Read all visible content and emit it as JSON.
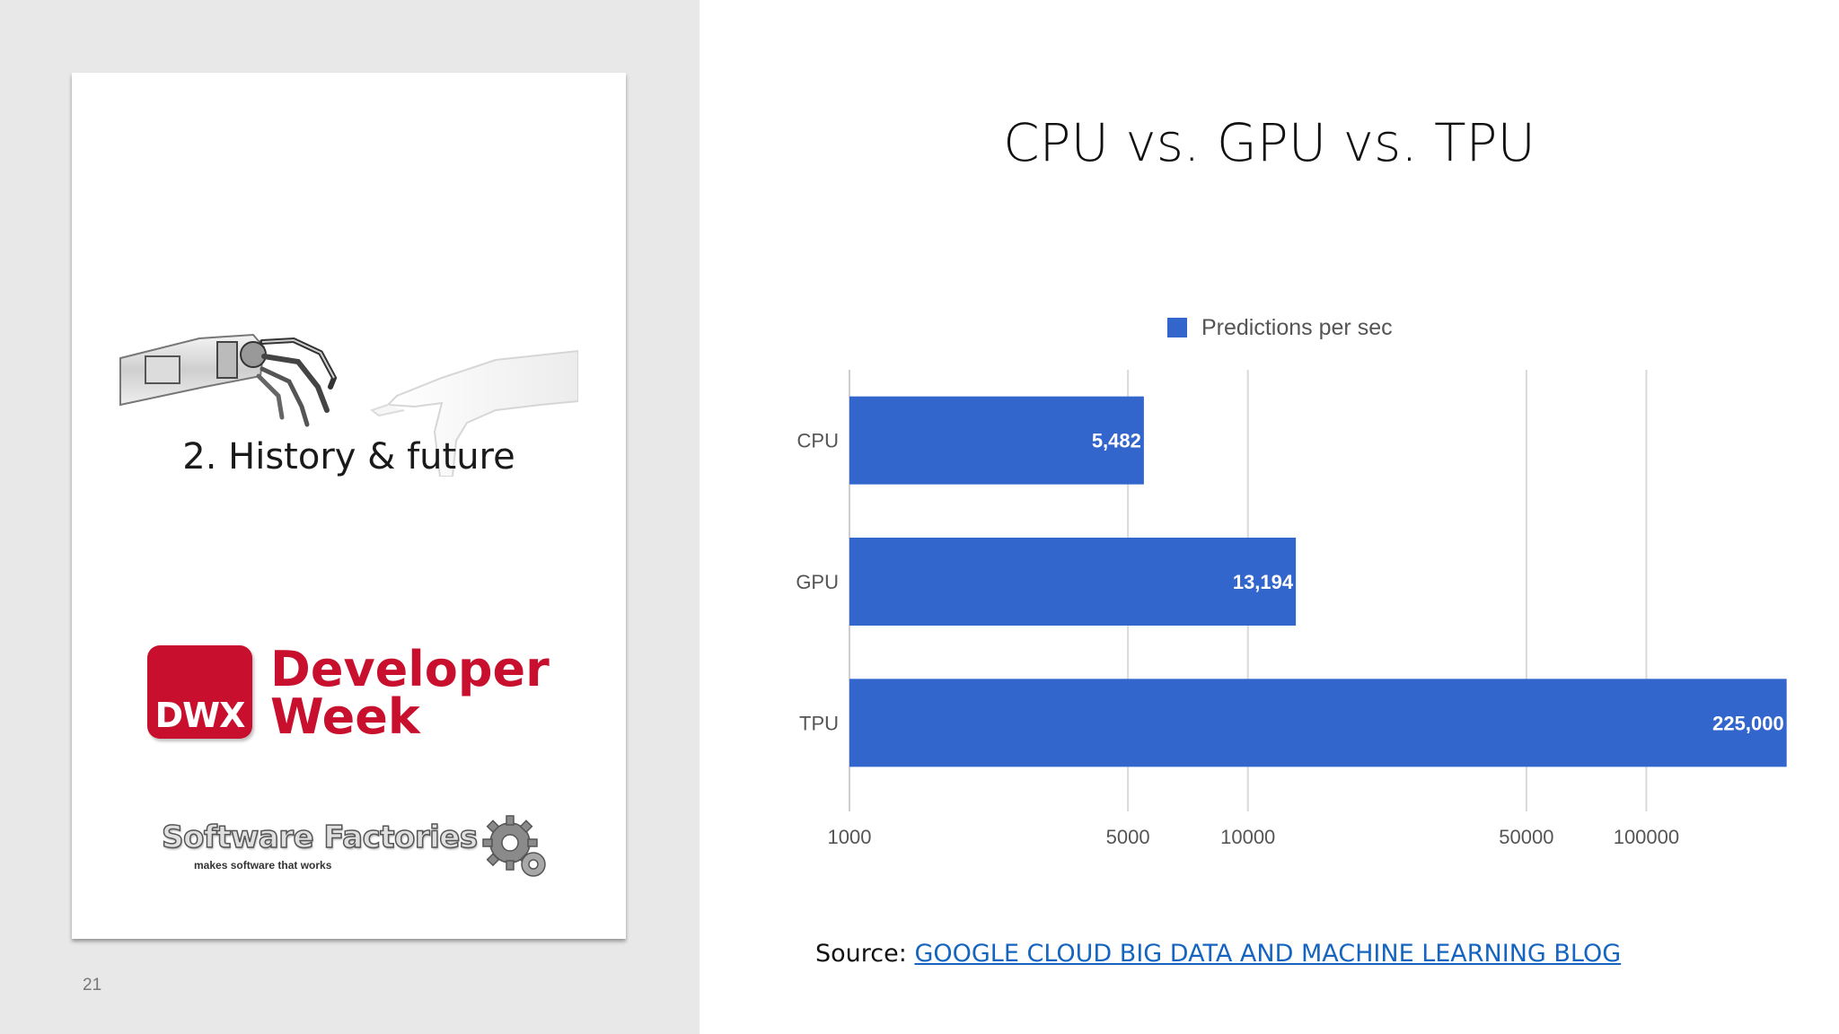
{
  "slide": {
    "title": "CPU vs. GPU vs. TPU",
    "page_number": "21",
    "source_label": "Source:",
    "source_link_text": "GOOGLE CLOUD BIG DATA AND MACHINE LEARNING BLOG"
  },
  "card": {
    "section_title": "2. History & future",
    "dwx_badge": "DWX",
    "dwx_line1": "Developer",
    "dwx_line2": "Week",
    "sf_name": "Software Factories",
    "sf_tagline": "makes software that works"
  },
  "colors": {
    "bar": "#3366cc",
    "brand_red": "#c8102e",
    "link": "#1565c0"
  },
  "chart_data": {
    "type": "bar",
    "orientation": "horizontal",
    "scale": "log",
    "categories": [
      "CPU",
      "GPU",
      "TPU"
    ],
    "series": [
      {
        "name": "Predictions per sec",
        "values": [
          5482,
          13194,
          225000
        ]
      }
    ],
    "value_labels": [
      "5,482",
      "13,194",
      "225,000"
    ],
    "xticks": [
      1000,
      5000,
      10000,
      50000,
      100000
    ],
    "xtick_labels": [
      "1000",
      "5000",
      "10000",
      "50000",
      "100000"
    ],
    "xlim": [
      1000,
      230000
    ],
    "grid": true,
    "legend_position": "top"
  }
}
